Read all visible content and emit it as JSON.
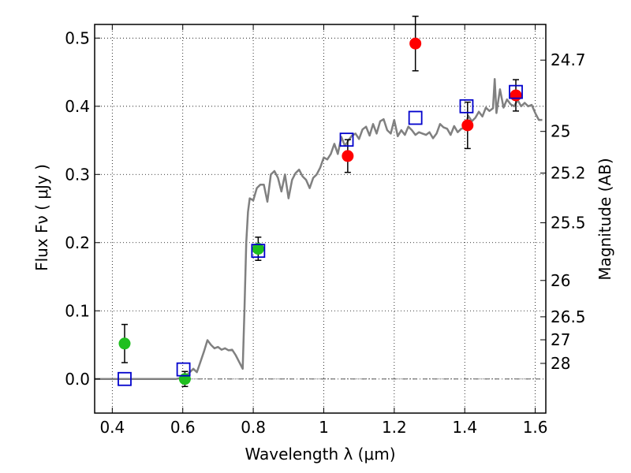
{
  "chart_data": {
    "type": "scatter",
    "title": "",
    "xlabel": "Wavelength  λ (μm)",
    "ylabel": "Flux  Fν  ( μJy )",
    "ylabel_right": "Magnitude (AB)",
    "xlim": [
      0.35,
      1.63
    ],
    "ylim": [
      -0.05,
      0.52
    ],
    "grid": true,
    "x_ticks": [
      0.4,
      0.6,
      0.8,
      1.0,
      1.2,
      1.4,
      1.6
    ],
    "x_tick_labels": [
      "0.4",
      "0.6",
      "0.8",
      "1",
      "1.2",
      "1.4",
      "1.6"
    ],
    "y_ticks": [
      0.0,
      0.1,
      0.2,
      0.3,
      0.4,
      0.5
    ],
    "y_tick_labels": [
      "0.0",
      "0.1",
      "0.2",
      "0.3",
      "0.4",
      "0.5"
    ],
    "right_ticks": [
      {
        "label": "24.7",
        "flux": 0.4677
      },
      {
        "label": "25",
        "flux": 0.3631
      },
      {
        "label": "25.2",
        "flux": 0.302
      },
      {
        "label": "25.5",
        "flux": 0.2291
      },
      {
        "label": "26",
        "flux": 0.1445
      },
      {
        "label": "26.5",
        "flux": 0.0912
      },
      {
        "label": "27",
        "flux": 0.0575
      },
      {
        "label": "28",
        "flux": 0.0229
      }
    ],
    "colors": {
      "model": "#808080",
      "green": "#1fbf1f",
      "red": "#ff0000",
      "model_box": "#0000cc",
      "errorbar": "#000000",
      "zero_line": "#555555"
    },
    "series": [
      {
        "kind": "model_spectrum",
        "x": [
          0.35,
          0.4,
          0.5,
          0.55,
          0.58,
          0.6,
          0.61,
          0.62,
          0.63,
          0.64,
          0.65,
          0.66,
          0.67,
          0.68,
          0.69,
          0.7,
          0.71,
          0.72,
          0.73,
          0.74,
          0.75,
          0.76,
          0.765,
          0.77,
          0.775,
          0.78,
          0.785,
          0.79,
          0.8,
          0.81,
          0.82,
          0.83,
          0.84,
          0.85,
          0.86,
          0.87,
          0.88,
          0.89,
          0.9,
          0.91,
          0.92,
          0.93,
          0.94,
          0.95,
          0.96,
          0.97,
          0.98,
          0.99,
          1.0,
          1.01,
          1.02,
          1.03,
          1.04,
          1.05,
          1.06,
          1.07,
          1.08,
          1.09,
          1.1,
          1.11,
          1.12,
          1.13,
          1.14,
          1.15,
          1.16,
          1.17,
          1.18,
          1.19,
          1.2,
          1.21,
          1.22,
          1.23,
          1.24,
          1.25,
          1.26,
          1.27,
          1.28,
          1.29,
          1.3,
          1.31,
          1.32,
          1.33,
          1.34,
          1.35,
          1.36,
          1.37,
          1.38,
          1.39,
          1.4,
          1.41,
          1.42,
          1.43,
          1.44,
          1.45,
          1.46,
          1.47,
          1.48,
          1.485,
          1.49,
          1.5,
          1.51,
          1.52,
          1.53,
          1.54,
          1.55,
          1.56,
          1.57,
          1.58,
          1.59,
          1.6,
          1.61,
          1.62
        ],
        "y": [
          0.0,
          0.0,
          0.0,
          0.0,
          0.0,
          0.002,
          0.005,
          0.01,
          0.015,
          0.01,
          0.025,
          0.04,
          0.057,
          0.05,
          0.045,
          0.047,
          0.043,
          0.045,
          0.042,
          0.043,
          0.035,
          0.025,
          0.02,
          0.015,
          0.1,
          0.2,
          0.245,
          0.265,
          0.262,
          0.28,
          0.285,
          0.285,
          0.26,
          0.3,
          0.305,
          0.295,
          0.275,
          0.3,
          0.265,
          0.292,
          0.302,
          0.307,
          0.297,
          0.292,
          0.28,
          0.295,
          0.3,
          0.31,
          0.325,
          0.322,
          0.33,
          0.345,
          0.33,
          0.355,
          0.342,
          0.35,
          0.357,
          0.36,
          0.352,
          0.366,
          0.37,
          0.357,
          0.374,
          0.36,
          0.378,
          0.381,
          0.365,
          0.36,
          0.38,
          0.356,
          0.365,
          0.358,
          0.37,
          0.365,
          0.358,
          0.362,
          0.36,
          0.358,
          0.362,
          0.353,
          0.36,
          0.374,
          0.369,
          0.367,
          0.358,
          0.371,
          0.362,
          0.367,
          0.368,
          0.386,
          0.378,
          0.383,
          0.392,
          0.385,
          0.398,
          0.393,
          0.397,
          0.44,
          0.39,
          0.425,
          0.398,
          0.41,
          0.403,
          0.4,
          0.409,
          0.4,
          0.405,
          0.4,
          0.402,
          0.39,
          0.38,
          0.38
        ]
      },
      {
        "kind": "observed_green",
        "points": [
          {
            "x": 0.435,
            "y": 0.052,
            "err": 0.028
          },
          {
            "x": 0.606,
            "y": 0.0,
            "err": 0.011
          },
          {
            "x": 0.814,
            "y": 0.191,
            "err": 0.017
          }
        ]
      },
      {
        "kind": "observed_red",
        "points": [
          {
            "x": 1.068,
            "y": 0.327,
            "err": 0.024
          },
          {
            "x": 1.26,
            "y": 0.492,
            "err": 0.04
          },
          {
            "x": 1.408,
            "y": 0.372,
            "err": 0.034
          },
          {
            "x": 1.545,
            "y": 0.416,
            "err": 0.023
          }
        ]
      },
      {
        "kind": "model_photometry",
        "points": [
          {
            "x": 0.435,
            "y": 0.0
          },
          {
            "x": 0.602,
            "y": 0.014
          },
          {
            "x": 0.814,
            "y": 0.188
          },
          {
            "x": 1.065,
            "y": 0.351
          },
          {
            "x": 1.26,
            "y": 0.383
          },
          {
            "x": 1.405,
            "y": 0.4
          },
          {
            "x": 1.545,
            "y": 0.421
          }
        ]
      }
    ]
  }
}
